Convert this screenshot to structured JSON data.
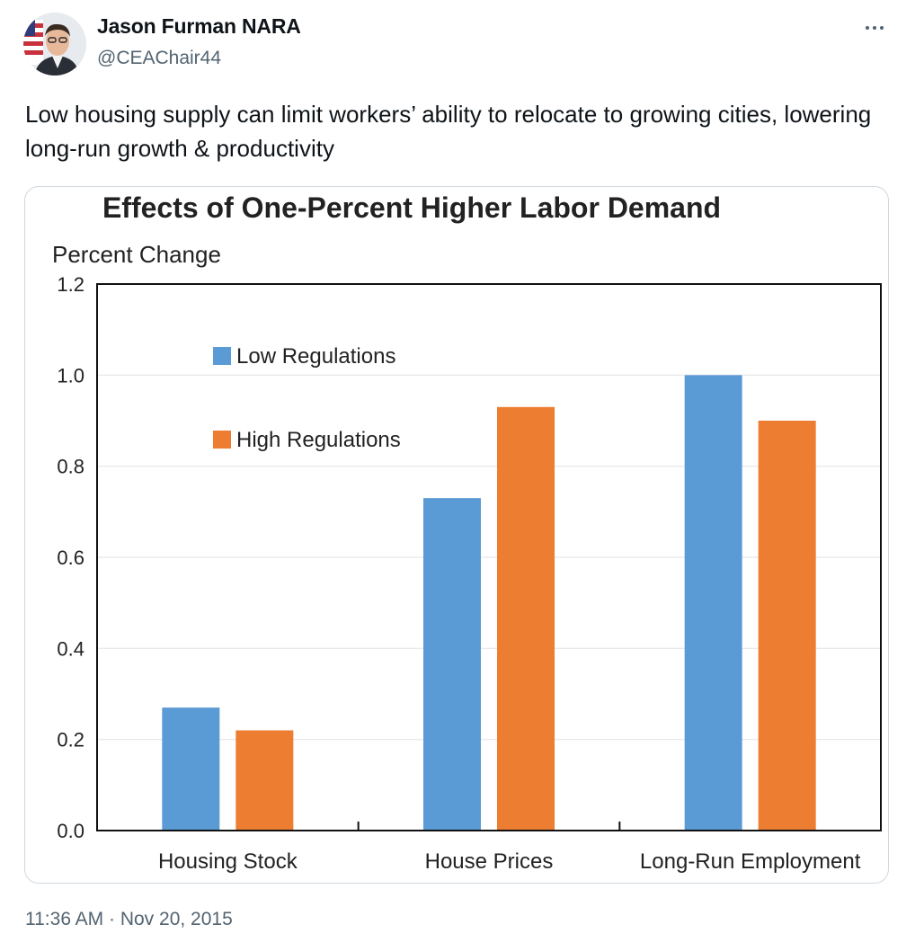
{
  "tweet": {
    "author_name": "Jason Furman NARA",
    "author_handle": "@CEAChair44",
    "text": "Low housing supply can limit workers’ ability to relocate to growing cities, lowering long-run growth & productivity",
    "timestamp": "11:36 AM · Nov 20, 2015",
    "more_icon": "more-horizontal-icon"
  },
  "chart_data": {
    "type": "bar",
    "title": "Effects of One-Percent Higher Labor Demand",
    "ylabel": "Percent Change",
    "xlabel": "",
    "categories": [
      "Housing Stock",
      "House Prices",
      "Long-Run Employment"
    ],
    "series": [
      {
        "name": "Low Regulations",
        "color": "#5b9bd5",
        "values": [
          0.27,
          0.73,
          1.0
        ]
      },
      {
        "name": "High Regulations",
        "color": "#ed7d31",
        "values": [
          0.22,
          0.93,
          0.9
        ]
      }
    ],
    "ylim": [
      0,
      1.2
    ],
    "yticks": [
      "0.0",
      "0.2",
      "0.4",
      "0.6",
      "0.8",
      "1.0",
      "1.2"
    ],
    "grid": true,
    "legend_position": "top-left"
  }
}
